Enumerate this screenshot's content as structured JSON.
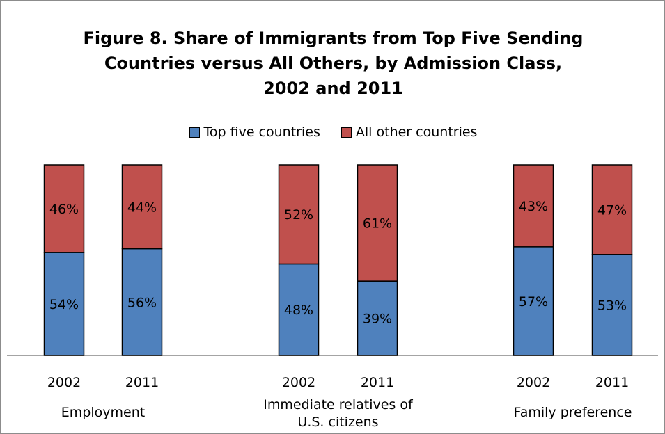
{
  "chart_data": {
    "type": "bar",
    "stacked": true,
    "title": [
      "Figure 8. Share of Immigrants from Top Five Sending",
      "Countries versus All Others, by Admission Class,",
      "2002 and 2011"
    ],
    "groups": [
      {
        "label": [
          "Employment"
        ],
        "bars": [
          {
            "x": "2002",
            "values": [
              54,
              46
            ]
          },
          {
            "x": "2011",
            "values": [
              56,
              44
            ]
          }
        ]
      },
      {
        "label": [
          "Immediate relatives of",
          "U.S. citizens"
        ],
        "bars": [
          {
            "x": "2002",
            "values": [
              48,
              52
            ]
          },
          {
            "x": "2011",
            "values": [
              39,
              61
            ]
          }
        ]
      },
      {
        "label": [
          "Family preference"
        ],
        "bars": [
          {
            "x": "2002",
            "values": [
              57,
              43
            ]
          },
          {
            "x": "2011",
            "values": [
              53,
              47
            ]
          }
        ]
      }
    ],
    "series": [
      {
        "name": "Top five countries",
        "color": "#4f81bd"
      },
      {
        "name": "All other countries",
        "color": "#c0504d"
      }
    ],
    "value_suffix": "%",
    "ylim": [
      0,
      100
    ],
    "legend_position": "top",
    "grid": false
  }
}
